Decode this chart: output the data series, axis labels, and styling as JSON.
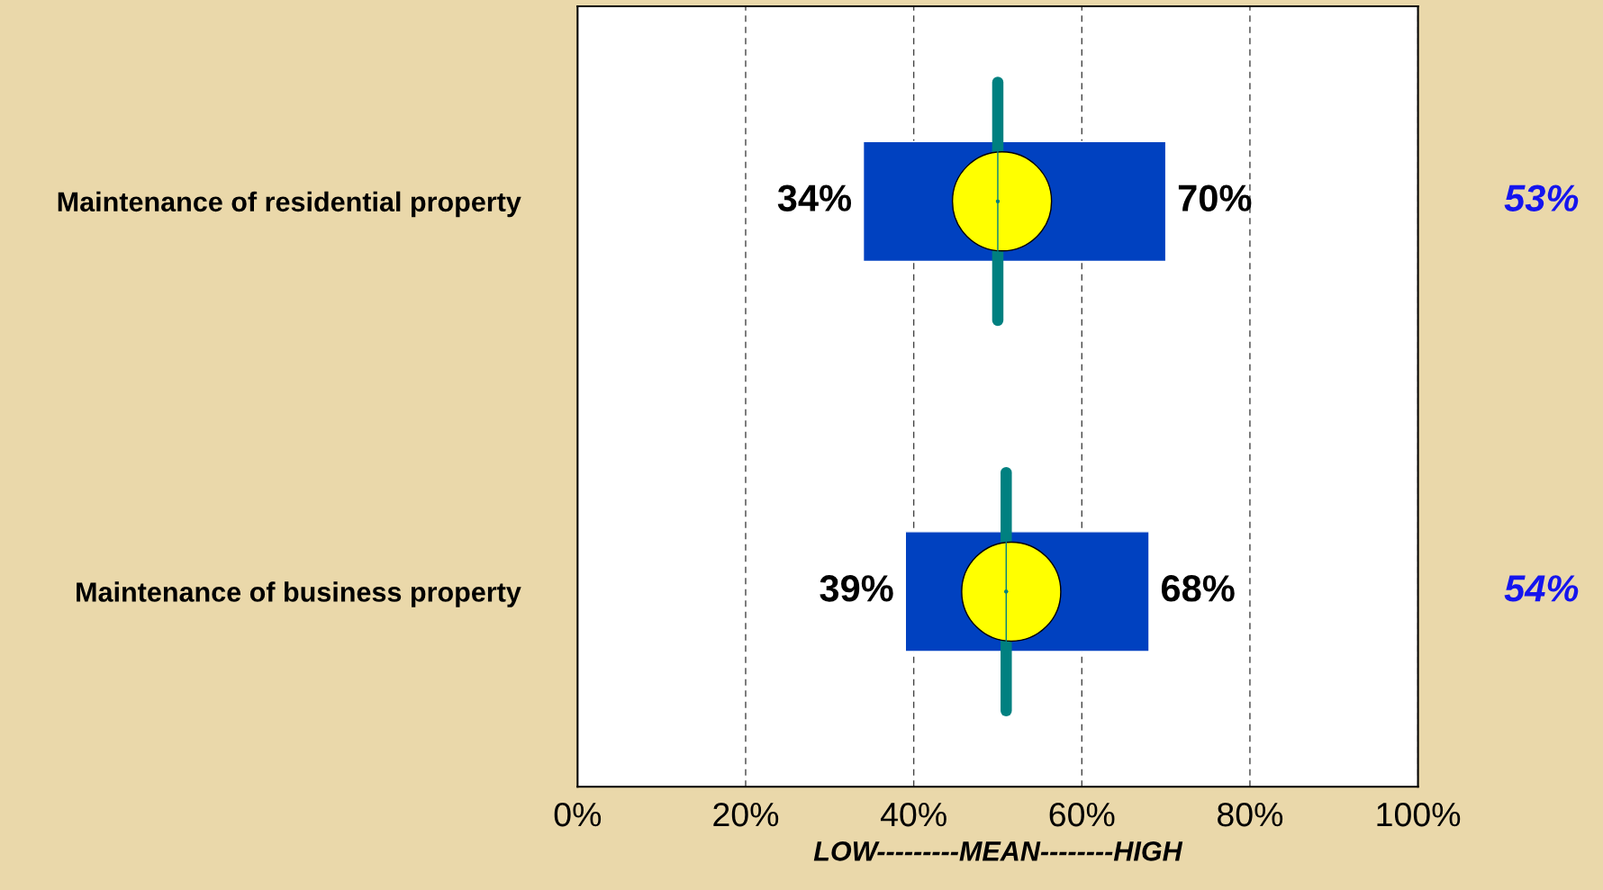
{
  "chart_data": {
    "type": "bar",
    "orientation": "horizontal",
    "xlabel": "LOW---------MEAN--------HIGH",
    "categories": [
      "Maintenance of residential property",
      "Maintenance of business property"
    ],
    "series": [
      {
        "color": "#0041c0",
        "base": [
          34,
          39
        ],
        "values": [
          36,
          29
        ]
      },
      {
        "type": "box",
        "color": "#008080",
        "boxes": [
          {
            "low": 50,
            "q1": 50,
            "median": 50,
            "q3": 50,
            "high": 50
          },
          {
            "low": 51,
            "q1": 51,
            "median": 51,
            "q3": 51,
            "high": 51
          }
        ]
      },
      {
        "type": "scatter",
        "marker": "circle",
        "color": "#ffff00",
        "x": [
          "Maintenance of residential property",
          "Maintenance of business property"
        ],
        "values": [
          50.5,
          51.6
        ]
      }
    ],
    "xlim": [
      0,
      100
    ],
    "xticks": [
      {
        "value": 0,
        "label": "0%"
      },
      {
        "value": 20,
        "label": "20%"
      },
      {
        "value": 40,
        "label": "40%"
      },
      {
        "value": 60,
        "label": "60%"
      },
      {
        "value": 80,
        "label": "80%"
      },
      {
        "value": 100,
        "label": "100%"
      }
    ],
    "grid": "x",
    "annotations": [
      {
        "text": "34%",
        "x": 34,
        "y": "Maintenance of residential property"
      },
      {
        "text": "70%",
        "x": 70,
        "y": "Maintenance of residential property"
      },
      {
        "text": "39%",
        "x": 39,
        "y": "Maintenance of business property"
      },
      {
        "text": "68%",
        "x": 68,
        "y": "Maintenance of business property"
      },
      "53%",
      "54%"
    ]
  }
}
